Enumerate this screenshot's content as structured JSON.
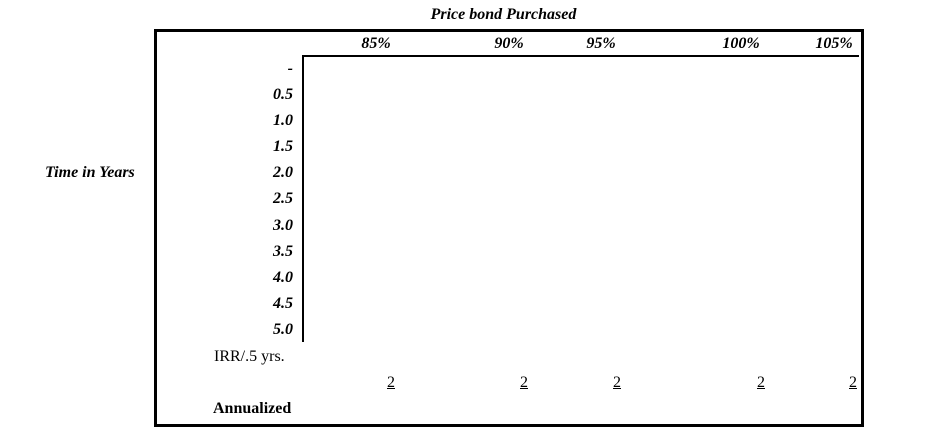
{
  "title": "Price bond Purchased",
  "side_label": "Time in Years",
  "columns": [
    "85%",
    "90%",
    "95%",
    "100%",
    "105%"
  ],
  "rows": [
    "-",
    "0.5",
    "1.0",
    "1.5",
    "2.0",
    "2.5",
    "3.0",
    "3.5",
    "4.0",
    "4.5",
    "5.0"
  ],
  "irr_label": "IRR/.5 yrs.",
  "irr_values": [
    "2",
    "2",
    "2",
    "2",
    "2"
  ],
  "annualized_label": "Annualized"
}
